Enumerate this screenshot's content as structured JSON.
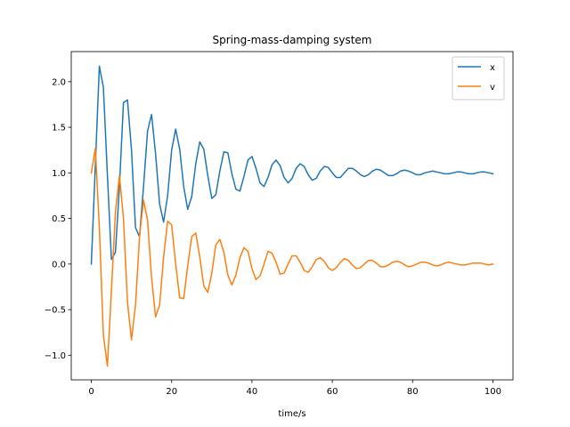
{
  "chart_data": {
    "type": "line",
    "title": "Spring-mass-damping system",
    "xlabel": "time/s",
    "ylabel": "",
    "xlim": [
      -5,
      105
    ],
    "ylim": [
      -1.27,
      2.33
    ],
    "xticks": [
      0,
      20,
      40,
      60,
      80,
      100
    ],
    "yticks": [
      -1.0,
      -0.5,
      0.0,
      0.5,
      1.0,
      1.5,
      2.0
    ],
    "grid": false,
    "legend": "top-right",
    "series": [
      {
        "name": "x",
        "color": "#1f77b4",
        "x": [
          0,
          2,
          3,
          4,
          5,
          6,
          7,
          8,
          9,
          10,
          11,
          12,
          13,
          14,
          15,
          16,
          17,
          18,
          19,
          20,
          21,
          22,
          23,
          24,
          25,
          26,
          27,
          28,
          29,
          30,
          31,
          32,
          33,
          34,
          35,
          36,
          37,
          38,
          39,
          40,
          41,
          42,
          43,
          44,
          45,
          46,
          47,
          48,
          49,
          50,
          51,
          52,
          53,
          54,
          55,
          56,
          57,
          58,
          59,
          60,
          61,
          62,
          63,
          64,
          65,
          66,
          67,
          68,
          69,
          70,
          71,
          72,
          73,
          74,
          75,
          76,
          77,
          78,
          79,
          80,
          81,
          82,
          83,
          84,
          85,
          86,
          87,
          88,
          89,
          90,
          91,
          92,
          93,
          94,
          95,
          96,
          97,
          98,
          99,
          100
        ],
        "y": [
          0.0,
          2.17,
          1.94,
          0.98,
          0.05,
          0.13,
          0.85,
          1.77,
          1.8,
          1.25,
          0.4,
          0.3,
          0.85,
          1.46,
          1.64,
          1.21,
          0.66,
          0.46,
          0.75,
          1.25,
          1.48,
          1.26,
          0.85,
          0.6,
          0.74,
          1.1,
          1.34,
          1.26,
          0.97,
          0.72,
          0.76,
          1.02,
          1.23,
          1.22,
          0.99,
          0.82,
          0.8,
          0.96,
          1.14,
          1.18,
          1.05,
          0.89,
          0.85,
          0.95,
          1.09,
          1.14,
          1.08,
          0.95,
          0.89,
          0.94,
          1.05,
          1.1,
          1.07,
          0.98,
          0.92,
          0.94,
          1.02,
          1.07,
          1.06,
          1.0,
          0.95,
          0.95,
          1.0,
          1.05,
          1.05,
          1.02,
          0.98,
          0.96,
          0.98,
          1.02,
          1.04,
          1.03,
          1.0,
          0.97,
          0.97,
          0.99,
          1.02,
          1.03,
          1.02,
          1.0,
          0.98,
          0.98,
          1.0,
          1.01,
          1.02,
          1.01,
          1.0,
          0.99,
          0.99,
          1.0,
          1.01,
          1.01,
          1.0,
          0.99,
          0.99,
          1.0,
          1.01,
          1.01,
          1.0,
          0.99
        ]
      },
      {
        "name": "v",
        "color": "#ff7f0e",
        "x": [
          0,
          1,
          2,
          3,
          4,
          5,
          6,
          7,
          8,
          9,
          10,
          11,
          12,
          13,
          14,
          15,
          16,
          17,
          18,
          19,
          20,
          21,
          22,
          23,
          24,
          25,
          26,
          27,
          28,
          29,
          30,
          31,
          32,
          33,
          34,
          35,
          36,
          37,
          38,
          39,
          40,
          41,
          42,
          43,
          44,
          45,
          46,
          47,
          48,
          49,
          50,
          51,
          52,
          53,
          54,
          55,
          56,
          57,
          58,
          59,
          60,
          61,
          62,
          63,
          64,
          65,
          66,
          67,
          68,
          69,
          70,
          71,
          72,
          73,
          74,
          75,
          76,
          77,
          78,
          79,
          80,
          81,
          82,
          83,
          84,
          85,
          86,
          87,
          88,
          89,
          90,
          91,
          92,
          93,
          94,
          95,
          96,
          97,
          98,
          99,
          100
        ],
        "y": [
          1.0,
          1.27,
          0.4,
          -0.78,
          -1.12,
          -0.3,
          0.57,
          0.97,
          0.5,
          -0.42,
          -0.83,
          -0.45,
          0.3,
          0.7,
          0.48,
          -0.15,
          -0.58,
          -0.45,
          0.08,
          0.47,
          0.43,
          0.0,
          -0.37,
          -0.38,
          -0.02,
          0.3,
          0.34,
          0.08,
          -0.24,
          -0.31,
          -0.1,
          0.21,
          0.27,
          0.13,
          -0.12,
          -0.23,
          -0.12,
          0.07,
          0.18,
          0.14,
          -0.05,
          -0.17,
          -0.13,
          0.0,
          0.14,
          0.12,
          0.02,
          -0.11,
          -0.1,
          0.0,
          0.09,
          0.09,
          0.02,
          -0.07,
          -0.09,
          -0.03,
          0.05,
          0.07,
          0.03,
          -0.04,
          -0.07,
          -0.04,
          0.02,
          0.06,
          0.04,
          -0.01,
          -0.05,
          -0.04,
          0.0,
          0.04,
          0.04,
          0.01,
          -0.03,
          -0.03,
          -0.01,
          0.02,
          0.03,
          0.02,
          -0.01,
          -0.03,
          -0.02,
          0.0,
          0.02,
          0.02,
          0.01,
          -0.01,
          -0.02,
          -0.01,
          0.01,
          0.02,
          0.01,
          0.0,
          -0.01,
          -0.01,
          0.0,
          0.01,
          0.01,
          0.01,
          0.0,
          -0.01,
          0.0
        ]
      }
    ]
  }
}
